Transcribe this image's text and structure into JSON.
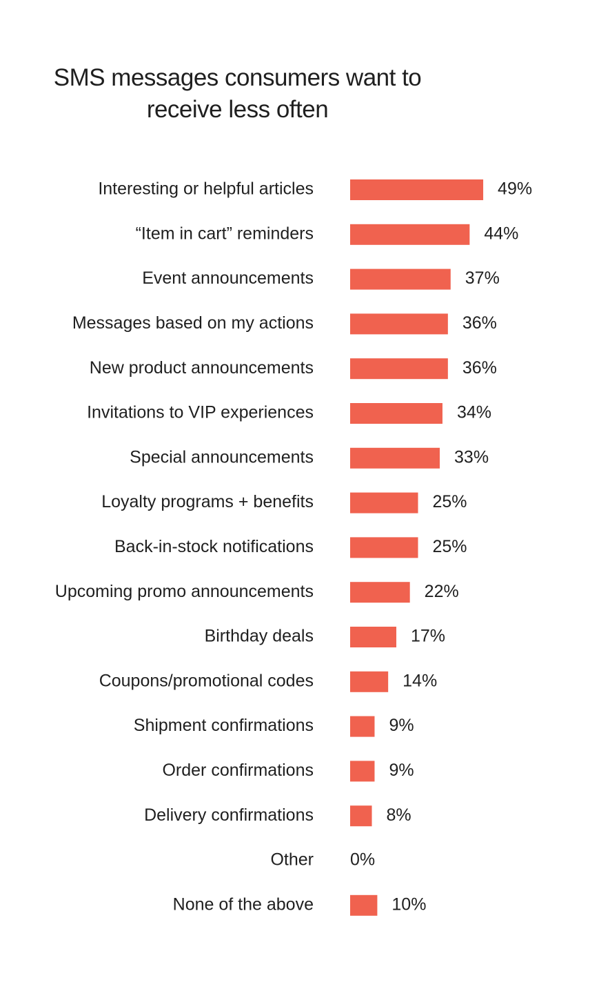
{
  "chart_data": {
    "type": "bar",
    "orientation": "horizontal",
    "title": "SMS messages consumers want to receive less often",
    "categories": [
      "Interesting or helpful articles",
      "“Item in cart” reminders",
      "Event announcements",
      "Messages based on my actions",
      "New product announcements",
      "Invitations to VIP experiences",
      "Special announcements",
      "Loyalty programs + benefits",
      "Back-in-stock notifications",
      "Upcoming promo announcements",
      "Birthday deals",
      "Coupons/promotional codes",
      "Shipment confirmations",
      "Order confirmations",
      "Delivery confirmations",
      "Other",
      "None of the above"
    ],
    "values": [
      49,
      44,
      37,
      36,
      36,
      34,
      33,
      25,
      25,
      22,
      17,
      14,
      9,
      9,
      8,
      0,
      10
    ],
    "value_labels": [
      "49%",
      "44%",
      "37%",
      "36%",
      "36%",
      "34%",
      "33%",
      "25%",
      "25%",
      "22%",
      "17%",
      "14%",
      "9%",
      "9%",
      "8%",
      "0%",
      "10%"
    ],
    "color": "#f0624f"
  }
}
